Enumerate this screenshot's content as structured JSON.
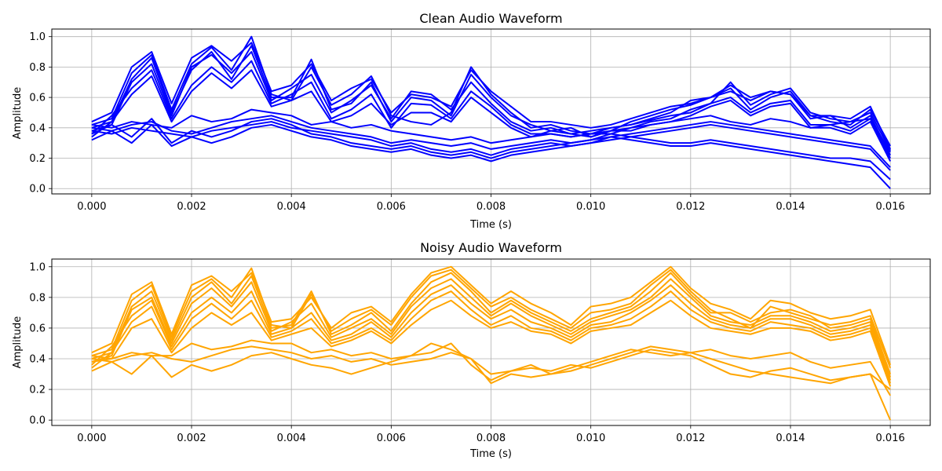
{
  "chart_data": [
    {
      "type": "line",
      "title": "Clean Audio Waveform",
      "xlabel": "Time (s)",
      "ylabel": "Amplitude",
      "xlim": [
        -0.0008,
        0.0168
      ],
      "ylim": [
        -0.035,
        1.05
      ],
      "xticks": [
        "0.000",
        "0.002",
        "0.004",
        "0.006",
        "0.008",
        "0.010",
        "0.012",
        "0.014",
        "0.016"
      ],
      "xtick_values": [
        0,
        0.002,
        0.004,
        0.006,
        0.008,
        0.01,
        0.012,
        0.014,
        0.016
      ],
      "yticks": [
        "0.0",
        "0.2",
        "0.4",
        "0.6",
        "0.8",
        "1.0"
      ],
      "ytick_values": [
        0,
        0.2,
        0.4,
        0.6,
        0.8,
        1.0
      ],
      "grid": true,
      "color": "#0000ff",
      "x": [
        0,
        0.0004,
        0.0008,
        0.0012,
        0.0016,
        0.002,
        0.0024,
        0.0028,
        0.0032,
        0.0036,
        0.004,
        0.0044,
        0.0048,
        0.0052,
        0.0056,
        0.006,
        0.0064,
        0.0068,
        0.0072,
        0.0076,
        0.008,
        0.0084,
        0.0088,
        0.0092,
        0.0096,
        0.01,
        0.0104,
        0.0108,
        0.0112,
        0.0116,
        0.012,
        0.0124,
        0.0128,
        0.0132,
        0.0136,
        0.014,
        0.0144,
        0.0148,
        0.0152,
        0.0156,
        0.016
      ],
      "series": [
        {
          "values": [
            0.42,
            0.46,
            0.76,
            0.88,
            0.52,
            0.82,
            0.93,
            0.78,
            1.0,
            0.62,
            0.58,
            0.8,
            0.55,
            0.62,
            0.74,
            0.48,
            0.44,
            0.42,
            0.5,
            0.8,
            0.62,
            0.5,
            0.4,
            0.42,
            0.38,
            0.36,
            0.4,
            0.42,
            0.45,
            0.48,
            0.5,
            0.56,
            0.7,
            0.55,
            0.62,
            0.66,
            0.5,
            0.46,
            0.44,
            0.5,
            0.25
          ]
        },
        {
          "values": [
            0.4,
            0.44,
            0.72,
            0.86,
            0.5,
            0.78,
            0.9,
            0.72,
            0.94,
            0.6,
            0.6,
            0.85,
            0.52,
            0.56,
            0.7,
            0.44,
            0.6,
            0.58,
            0.48,
            0.75,
            0.6,
            0.48,
            0.42,
            0.38,
            0.4,
            0.34,
            0.38,
            0.44,
            0.48,
            0.52,
            0.55,
            0.6,
            0.66,
            0.52,
            0.6,
            0.64,
            0.48,
            0.44,
            0.42,
            0.52,
            0.28
          ]
        },
        {
          "values": [
            0.38,
            0.42,
            0.7,
            0.82,
            0.48,
            0.8,
            0.88,
            0.76,
            0.9,
            0.58,
            0.66,
            0.75,
            0.5,
            0.58,
            0.68,
            0.46,
            0.64,
            0.62,
            0.52,
            0.7,
            0.56,
            0.44,
            0.38,
            0.4,
            0.36,
            0.38,
            0.4,
            0.42,
            0.46,
            0.5,
            0.58,
            0.6,
            0.64,
            0.58,
            0.64,
            0.62,
            0.46,
            0.48,
            0.4,
            0.48,
            0.22
          ]
        },
        {
          "values": [
            0.36,
            0.48,
            0.66,
            0.78,
            0.46,
            0.68,
            0.8,
            0.7,
            0.84,
            0.56,
            0.62,
            0.7,
            0.46,
            0.52,
            0.62,
            0.4,
            0.56,
            0.55,
            0.46,
            0.64,
            0.54,
            0.42,
            0.36,
            0.36,
            0.34,
            0.36,
            0.36,
            0.4,
            0.44,
            0.46,
            0.52,
            0.56,
            0.6,
            0.5,
            0.56,
            0.58,
            0.42,
            0.42,
            0.38,
            0.46,
            0.2
          ]
        },
        {
          "values": [
            0.34,
            0.44,
            0.62,
            0.74,
            0.44,
            0.64,
            0.76,
            0.66,
            0.78,
            0.54,
            0.58,
            0.64,
            0.44,
            0.48,
            0.56,
            0.42,
            0.5,
            0.5,
            0.44,
            0.6,
            0.5,
            0.4,
            0.34,
            0.38,
            0.36,
            0.34,
            0.38,
            0.38,
            0.42,
            0.44,
            0.48,
            0.54,
            0.58,
            0.48,
            0.54,
            0.56,
            0.4,
            0.4,
            0.36,
            0.44,
            0.18
          ]
        },
        {
          "values": [
            0.42,
            0.4,
            0.44,
            0.42,
            0.4,
            0.48,
            0.44,
            0.46,
            0.52,
            0.5,
            0.48,
            0.42,
            0.44,
            0.4,
            0.42,
            0.38,
            0.36,
            0.34,
            0.32,
            0.34,
            0.3,
            0.32,
            0.34,
            0.36,
            0.34,
            0.36,
            0.38,
            0.4,
            0.42,
            0.44,
            0.46,
            0.48,
            0.44,
            0.42,
            0.46,
            0.44,
            0.4,
            0.42,
            0.44,
            0.46,
            0.24
          ]
        },
        {
          "values": [
            0.4,
            0.38,
            0.42,
            0.44,
            0.38,
            0.36,
            0.4,
            0.44,
            0.46,
            0.48,
            0.44,
            0.4,
            0.38,
            0.36,
            0.34,
            0.3,
            0.32,
            0.3,
            0.28,
            0.3,
            0.26,
            0.28,
            0.3,
            0.32,
            0.3,
            0.32,
            0.34,
            0.36,
            0.38,
            0.4,
            0.42,
            0.44,
            0.42,
            0.4,
            0.38,
            0.36,
            0.34,
            0.32,
            0.3,
            0.28,
            0.14
          ]
        },
        {
          "values": [
            0.38,
            0.36,
            0.4,
            0.38,
            0.36,
            0.34,
            0.38,
            0.4,
            0.42,
            0.44,
            0.4,
            0.38,
            0.36,
            0.34,
            0.32,
            0.28,
            0.3,
            0.26,
            0.24,
            0.26,
            0.22,
            0.26,
            0.28,
            0.3,
            0.28,
            0.3,
            0.32,
            0.34,
            0.36,
            0.38,
            0.4,
            0.42,
            0.4,
            0.38,
            0.36,
            0.34,
            0.32,
            0.3,
            0.28,
            0.26,
            0.12
          ]
        },
        {
          "values": [
            0.36,
            0.42,
            0.34,
            0.46,
            0.3,
            0.38,
            0.34,
            0.38,
            0.44,
            0.46,
            0.42,
            0.36,
            0.34,
            0.3,
            0.28,
            0.26,
            0.28,
            0.24,
            0.22,
            0.24,
            0.2,
            0.24,
            0.26,
            0.28,
            0.3,
            0.32,
            0.36,
            0.34,
            0.32,
            0.3,
            0.3,
            0.32,
            0.3,
            0.28,
            0.26,
            0.24,
            0.22,
            0.2,
            0.2,
            0.18,
            0.06
          ]
        },
        {
          "values": [
            0.32,
            0.38,
            0.3,
            0.42,
            0.28,
            0.34,
            0.3,
            0.34,
            0.4,
            0.42,
            0.38,
            0.34,
            0.32,
            0.28,
            0.26,
            0.24,
            0.26,
            0.22,
            0.2,
            0.22,
            0.18,
            0.22,
            0.24,
            0.26,
            0.28,
            0.3,
            0.34,
            0.32,
            0.3,
            0.28,
            0.28,
            0.3,
            0.28,
            0.26,
            0.24,
            0.22,
            0.2,
            0.18,
            0.16,
            0.14,
            0.0
          ]
        },
        {
          "values": [
            0.44,
            0.5,
            0.8,
            0.9,
            0.56,
            0.86,
            0.94,
            0.84,
            0.96,
            0.64,
            0.68,
            0.82,
            0.58,
            0.66,
            0.72,
            0.5,
            0.62,
            0.6,
            0.54,
            0.78,
            0.64,
            0.54,
            0.44,
            0.44,
            0.42,
            0.4,
            0.42,
            0.46,
            0.5,
            0.54,
            0.56,
            0.6,
            0.68,
            0.6,
            0.64,
            0.62,
            0.48,
            0.48,
            0.46,
            0.54,
            0.26
          ]
        }
      ]
    },
    {
      "type": "line",
      "title": "Noisy Audio Waveform",
      "xlabel": "Time (s)",
      "ylabel": "Amplitude",
      "xlim": [
        -0.0008,
        0.0168
      ],
      "ylim": [
        -0.035,
        1.05
      ],
      "xticks": [
        "0.000",
        "0.002",
        "0.004",
        "0.006",
        "0.008",
        "0.010",
        "0.012",
        "0.014",
        "0.016"
      ],
      "xtick_values": [
        0,
        0.002,
        0.004,
        0.006,
        0.008,
        0.01,
        0.012,
        0.014,
        0.016
      ],
      "yticks": [
        "0.0",
        "0.2",
        "0.4",
        "0.6",
        "0.8",
        "1.0"
      ],
      "ytick_values": [
        0,
        0.2,
        0.4,
        0.6,
        0.8,
        1.0
      ],
      "grid": true,
      "color": "#ffa500",
      "x": [
        0,
        0.0004,
        0.0008,
        0.0012,
        0.0016,
        0.002,
        0.0024,
        0.0028,
        0.0032,
        0.0036,
        0.004,
        0.0044,
        0.0048,
        0.0052,
        0.0056,
        0.006,
        0.0064,
        0.0068,
        0.0072,
        0.0076,
        0.008,
        0.0084,
        0.0088,
        0.0092,
        0.0096,
        0.01,
        0.0104,
        0.0108,
        0.0112,
        0.0116,
        0.012,
        0.0124,
        0.0128,
        0.0132,
        0.0136,
        0.014,
        0.0144,
        0.0148,
        0.0152,
        0.0156,
        0.016
      ],
      "series": [
        {
          "values": [
            0.42,
            0.46,
            0.78,
            0.88,
            0.54,
            0.84,
            0.92,
            0.8,
            0.99,
            0.62,
            0.6,
            0.82,
            0.58,
            0.66,
            0.72,
            0.62,
            0.8,
            0.94,
            0.98,
            0.86,
            0.74,
            0.8,
            0.72,
            0.66,
            0.6,
            0.7,
            0.72,
            0.76,
            0.88,
            0.98,
            0.84,
            0.72,
            0.66,
            0.6,
            0.74,
            0.7,
            0.66,
            0.62,
            0.64,
            0.68,
            0.34
          ]
        },
        {
          "values": [
            0.4,
            0.44,
            0.74,
            0.84,
            0.52,
            0.8,
            0.9,
            0.76,
            0.94,
            0.6,
            0.62,
            0.84,
            0.56,
            0.62,
            0.7,
            0.58,
            0.76,
            0.9,
            0.96,
            0.84,
            0.7,
            0.78,
            0.7,
            0.64,
            0.58,
            0.66,
            0.7,
            0.74,
            0.84,
            0.96,
            0.82,
            0.7,
            0.7,
            0.64,
            0.7,
            0.72,
            0.68,
            0.6,
            0.62,
            0.66,
            0.3
          ]
        },
        {
          "values": [
            0.38,
            0.42,
            0.72,
            0.8,
            0.5,
            0.76,
            0.86,
            0.74,
            0.9,
            0.58,
            0.64,
            0.76,
            0.54,
            0.6,
            0.66,
            0.56,
            0.74,
            0.86,
            0.92,
            0.8,
            0.68,
            0.76,
            0.68,
            0.62,
            0.56,
            0.64,
            0.68,
            0.72,
            0.8,
            0.92,
            0.8,
            0.68,
            0.64,
            0.62,
            0.68,
            0.68,
            0.64,
            0.58,
            0.6,
            0.64,
            0.28
          ]
        },
        {
          "values": [
            0.36,
            0.48,
            0.68,
            0.78,
            0.48,
            0.7,
            0.8,
            0.7,
            0.84,
            0.56,
            0.6,
            0.7,
            0.52,
            0.56,
            0.64,
            0.54,
            0.7,
            0.82,
            0.88,
            0.76,
            0.66,
            0.72,
            0.64,
            0.6,
            0.54,
            0.62,
            0.64,
            0.7,
            0.78,
            0.88,
            0.76,
            0.66,
            0.62,
            0.6,
            0.66,
            0.66,
            0.62,
            0.56,
            0.58,
            0.62,
            0.26
          ]
        },
        {
          "values": [
            0.34,
            0.44,
            0.64,
            0.74,
            0.46,
            0.66,
            0.76,
            0.66,
            0.78,
            0.54,
            0.58,
            0.66,
            0.5,
            0.54,
            0.6,
            0.52,
            0.66,
            0.78,
            0.84,
            0.72,
            0.62,
            0.68,
            0.6,
            0.58,
            0.52,
            0.6,
            0.62,
            0.66,
            0.74,
            0.84,
            0.72,
            0.64,
            0.6,
            0.58,
            0.64,
            0.62,
            0.6,
            0.54,
            0.56,
            0.6,
            0.24
          ]
        },
        {
          "values": [
            0.42,
            0.4,
            0.44,
            0.42,
            0.42,
            0.5,
            0.46,
            0.48,
            0.52,
            0.5,
            0.5,
            0.44,
            0.46,
            0.42,
            0.44,
            0.4,
            0.42,
            0.44,
            0.5,
            0.36,
            0.26,
            0.32,
            0.36,
            0.3,
            0.34,
            0.38,
            0.42,
            0.46,
            0.44,
            0.42,
            0.44,
            0.46,
            0.42,
            0.4,
            0.42,
            0.44,
            0.38,
            0.34,
            0.36,
            0.38,
            0.16
          ]
        },
        {
          "values": [
            0.4,
            0.38,
            0.42,
            0.44,
            0.4,
            0.38,
            0.42,
            0.46,
            0.48,
            0.46,
            0.44,
            0.4,
            0.42,
            0.38,
            0.4,
            0.36,
            0.38,
            0.4,
            0.44,
            0.4,
            0.3,
            0.32,
            0.34,
            0.32,
            0.36,
            0.34,
            0.38,
            0.42,
            0.46,
            0.44,
            0.42,
            0.36,
            0.3,
            0.28,
            0.32,
            0.34,
            0.3,
            0.26,
            0.28,
            0.3,
            0.0
          ]
        },
        {
          "values": [
            0.32,
            0.38,
            0.3,
            0.42,
            0.28,
            0.36,
            0.32,
            0.36,
            0.42,
            0.44,
            0.4,
            0.36,
            0.34,
            0.3,
            0.34,
            0.38,
            0.42,
            0.5,
            0.46,
            0.4,
            0.24,
            0.3,
            0.28,
            0.3,
            0.32,
            0.36,
            0.4,
            0.44,
            0.48,
            0.46,
            0.44,
            0.4,
            0.36,
            0.32,
            0.3,
            0.28,
            0.26,
            0.24,
            0.28,
            0.3,
            0.2
          ]
        },
        {
          "values": [
            0.44,
            0.5,
            0.82,
            0.9,
            0.56,
            0.88,
            0.94,
            0.84,
            0.96,
            0.64,
            0.66,
            0.8,
            0.6,
            0.7,
            0.74,
            0.64,
            0.82,
            0.96,
            1.0,
            0.88,
            0.76,
            0.84,
            0.76,
            0.7,
            0.62,
            0.74,
            0.76,
            0.8,
            0.9,
            1.0,
            0.86,
            0.76,
            0.72,
            0.66,
            0.78,
            0.76,
            0.7,
            0.66,
            0.68,
            0.72,
            0.36
          ]
        },
        {
          "values": [
            0.38,
            0.4,
            0.6,
            0.66,
            0.44,
            0.6,
            0.7,
            0.62,
            0.7,
            0.52,
            0.56,
            0.6,
            0.48,
            0.52,
            0.58,
            0.5,
            0.62,
            0.72,
            0.78,
            0.68,
            0.6,
            0.64,
            0.58,
            0.56,
            0.5,
            0.58,
            0.6,
            0.62,
            0.7,
            0.78,
            0.68,
            0.6,
            0.58,
            0.56,
            0.6,
            0.6,
            0.58,
            0.52,
            0.54,
            0.58,
            0.22
          ]
        }
      ]
    }
  ]
}
